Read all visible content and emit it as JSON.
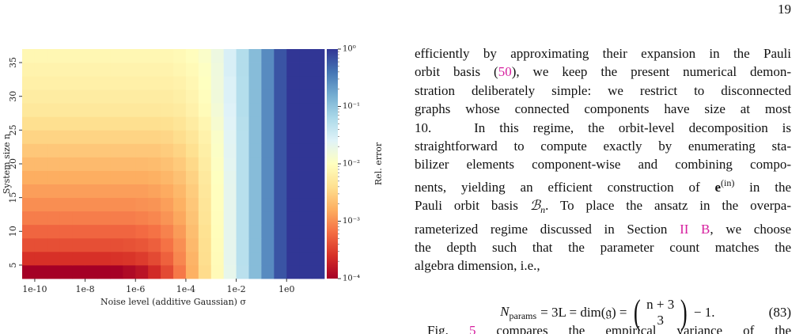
{
  "page_number": "19",
  "chart_data": {
    "type": "heatmap",
    "xlabel": "Noise level (additive Gaussian) σ",
    "ylabel": "System size n",
    "colorbar_label": "Rel. error",
    "xlim": [
      -10.5,
      1.5
    ],
    "xticks": [
      {
        "value": -10,
        "label": "1e-10"
      },
      {
        "value": -8,
        "label": "1e-8"
      },
      {
        "value": -6,
        "label": "1e-6"
      },
      {
        "value": -4,
        "label": "1e-4"
      },
      {
        "value": -2,
        "label": "1e-2"
      },
      {
        "value": 0,
        "label": "1e0"
      }
    ],
    "ylim": [
      3,
      37
    ],
    "yticks": [
      5,
      10,
      15,
      20,
      25,
      30,
      35
    ],
    "clim": [
      -4,
      0
    ],
    "cticks": [
      {
        "value": 0,
        "label": "10⁰"
      },
      {
        "value": -1,
        "label": "10⁻¹"
      },
      {
        "value": -2,
        "label": "10⁻²"
      },
      {
        "value": -3,
        "label": "10⁻³"
      },
      {
        "value": -4,
        "label": "10⁻⁴"
      }
    ],
    "colormap": "RdYlBu",
    "x": [
      -10.25,
      -9.75,
      -9.25,
      -8.75,
      -8.25,
      -7.75,
      -7.25,
      -6.75,
      -6.25,
      -5.75,
      -5.25,
      -4.75,
      -4.25,
      -3.75,
      -3.25,
      -2.75,
      -2.25,
      -1.75,
      -1.25,
      -0.75,
      -0.25,
      0.25,
      0.75,
      1.25
    ],
    "y": [
      4,
      6,
      8,
      10,
      12,
      14,
      16,
      18,
      20,
      22,
      24,
      26,
      28,
      30,
      32,
      34,
      36
    ],
    "z": [
      [
        -4,
        -4,
        -4,
        -4,
        -4,
        -4,
        -4,
        -3.99,
        -3.92,
        -3.83,
        -3.65,
        -3.43,
        -3.13,
        -2.78,
        -2.43,
        -2.06,
        -1.69,
        -1.31,
        -0.94,
        -0.56,
        -0.19,
        0,
        0,
        0
      ],
      [
        -3.6,
        -3.6,
        -3.6,
        -3.6,
        -3.6,
        -3.6,
        -3.6,
        -3.59,
        -3.57,
        -3.52,
        -3.43,
        -3.28,
        -3.04,
        -2.75,
        -2.41,
        -2.05,
        -1.68,
        -1.3,
        -0.94,
        -0.56,
        -0.19,
        0,
        0,
        0
      ],
      [
        -3.4,
        -3.4,
        -3.4,
        -3.4,
        -3.4,
        -3.4,
        -3.4,
        -3.4,
        -3.38,
        -3.35,
        -3.29,
        -3.17,
        -2.99,
        -2.71,
        -2.4,
        -2.04,
        -1.68,
        -1.3,
        -0.94,
        -0.56,
        -0.19,
        0,
        0,
        0
      ],
      [
        -3.25,
        -3.25,
        -3.25,
        -3.25,
        -3.25,
        -3.25,
        -3.25,
        -3.25,
        -3.25,
        -3.22,
        -3.17,
        -3.07,
        -2.92,
        -2.67,
        -2.38,
        -2.03,
        -1.68,
        -1.3,
        -0.94,
        -0.56,
        -0.19,
        0,
        0,
        0
      ],
      [
        -3.1,
        -3.1,
        -3.1,
        -3.1,
        -3.1,
        -3.1,
        -3.1,
        -3.1,
        -3.1,
        -3.08,
        -3.04,
        -2.96,
        -2.84,
        -2.63,
        -2.35,
        -2.02,
        -1.68,
        -1.3,
        -0.94,
        -0.56,
        -0.19,
        0,
        0,
        0
      ],
      [
        -3,
        -3,
        -3,
        -3,
        -3,
        -3,
        -3,
        -3,
        -3,
        -2.98,
        -2.96,
        -2.89,
        -2.78,
        -2.6,
        -2.33,
        -2.01,
        -1.68,
        -1.3,
        -0.94,
        -0.56,
        -0.19,
        0,
        0,
        0
      ],
      [
        -2.9,
        -2.9,
        -2.9,
        -2.9,
        -2.9,
        -2.9,
        -2.9,
        -2.9,
        -2.9,
        -2.9,
        -2.87,
        -2.82,
        -2.72,
        -2.56,
        -2.31,
        -2.01,
        -1.68,
        -1.3,
        -0.94,
        -0.56,
        -0.19,
        0,
        0,
        0
      ],
      [
        -2.8,
        -2.8,
        -2.8,
        -2.8,
        -2.8,
        -2.8,
        -2.8,
        -2.8,
        -2.8,
        -2.8,
        -2.78,
        -2.73,
        -2.65,
        -2.51,
        -2.28,
        -1.99,
        -1.67,
        -1.3,
        -0.94,
        -0.56,
        -0.19,
        0,
        0,
        0
      ],
      [
        -2.7,
        -2.7,
        -2.7,
        -2.7,
        -2.7,
        -2.7,
        -2.7,
        -2.7,
        -2.7,
        -2.7,
        -2.69,
        -2.65,
        -2.58,
        -2.46,
        -2.25,
        -1.97,
        -1.65,
        -1.3,
        -0.94,
        -0.56,
        -0.19,
        0,
        0,
        0
      ],
      [
        -2.6,
        -2.6,
        -2.6,
        -2.6,
        -2.6,
        -2.6,
        -2.6,
        -2.6,
        -2.6,
        -2.6,
        -2.6,
        -2.56,
        -2.5,
        -2.39,
        -2.21,
        -1.95,
        -1.64,
        -1.3,
        -0.94,
        -0.56,
        -0.19,
        0,
        0,
        0
      ],
      [
        -2.5,
        -2.5,
        -2.5,
        -2.5,
        -2.5,
        -2.5,
        -2.5,
        -2.5,
        -2.5,
        -2.5,
        -2.5,
        -2.48,
        -2.42,
        -2.32,
        -2.17,
        -1.93,
        -1.63,
        -1.3,
        -0.94,
        -0.56,
        -0.19,
        0,
        0,
        0
      ],
      [
        -2.4,
        -2.4,
        -2.4,
        -2.4,
        -2.4,
        -2.4,
        -2.4,
        -2.4,
        -2.4,
        -2.4,
        -2.4,
        -2.39,
        -2.34,
        -2.25,
        -2.12,
        -1.88,
        -1.61,
        -1.29,
        -0.94,
        -0.56,
        -0.19,
        0,
        0,
        0
      ],
      [
        -2.3,
        -2.3,
        -2.3,
        -2.3,
        -2.3,
        -2.3,
        -2.3,
        -2.3,
        -2.3,
        -2.3,
        -2.3,
        -2.29,
        -2.26,
        -2.18,
        -2.05,
        -1.84,
        -1.59,
        -1.27,
        -0.94,
        -0.56,
        -0.19,
        0,
        0,
        0
      ],
      [
        -2.25,
        -2.25,
        -2.25,
        -2.25,
        -2.25,
        -2.25,
        -2.25,
        -2.25,
        -2.25,
        -2.25,
        -2.25,
        -2.25,
        -2.21,
        -2.14,
        -2.02,
        -1.81,
        -1.57,
        -1.27,
        -0.94,
        -0.56,
        -0.19,
        0,
        0,
        0
      ],
      [
        -2.2,
        -2.2,
        -2.2,
        -2.2,
        -2.2,
        -2.2,
        -2.2,
        -2.2,
        -2.2,
        -2.2,
        -2.2,
        -2.2,
        -2.17,
        -2.1,
        -1.99,
        -1.8,
        -1.57,
        -1.27,
        -0.94,
        -0.56,
        -0.19,
        0,
        0,
        0
      ],
      [
        -2.15,
        -2.15,
        -2.15,
        -2.15,
        -2.15,
        -2.15,
        -2.15,
        -2.15,
        -2.15,
        -2.15,
        -2.15,
        -2.15,
        -2.12,
        -2.07,
        -1.97,
        -1.79,
        -1.54,
        -1.26,
        -0.94,
        -0.56,
        -0.19,
        0,
        0,
        0
      ],
      [
        -2.1,
        -2.1,
        -2.1,
        -2.1,
        -2.1,
        -2.1,
        -2.1,
        -2.1,
        -2.1,
        -2.1,
        -2.1,
        -2.1,
        -2.08,
        -2.02,
        -1.93,
        -1.77,
        -1.54,
        -1.26,
        -0.94,
        -0.56,
        -0.19,
        0,
        0,
        0
      ]
    ]
  },
  "text": {
    "lines": [
      [
        "efficiently by approximating their expansion in the Pauli"
      ],
      [
        "orbit basis (",
        {
          "text": "50",
          "style": "link"
        },
        "), we keep the present numerical demon-"
      ],
      [
        "stration deliberately simple: we restrict to disconnected"
      ],
      [
        "graphs whose connected components have size at most"
      ],
      [
        "10.   In this regime, the orbit-level decomposition is"
      ],
      [
        "straightforward to compute exactly by enumerating sta-"
      ],
      [
        "bilizer elements component-wise and combining compo-"
      ],
      [
        "nents, yielding an efficient construction of ",
        {
          "text": "e",
          "style": "bold"
        },
        {
          "text": "(in)",
          "style": "sup"
        },
        " in the"
      ],
      [
        "Pauli orbit basis ",
        {
          "text": "ℬ",
          "style": "italic"
        },
        {
          "text": "n",
          "style": "sub"
        },
        ". To place the ansatz in the overpa-"
      ],
      [
        "rameterized regime discussed in Section ",
        {
          "text": "II B",
          "style": "link"
        },
        ", we choose"
      ],
      [
        "the depth such that the parameter count matches the"
      ],
      [
        "algebra dimension, i.e.,"
      ]
    ],
    "equation": {
      "symbol": "N",
      "subscript": "params",
      "middle": "= 3L = dim(𝔤) =",
      "top": "n + 3",
      "bottom": "3",
      "tail": "− 1.",
      "number": "(83)"
    },
    "next_line": [
      "Fig. ",
      {
        "text": "5",
        "style": "link"
      },
      " compares the empirical variance of the"
    ]
  }
}
